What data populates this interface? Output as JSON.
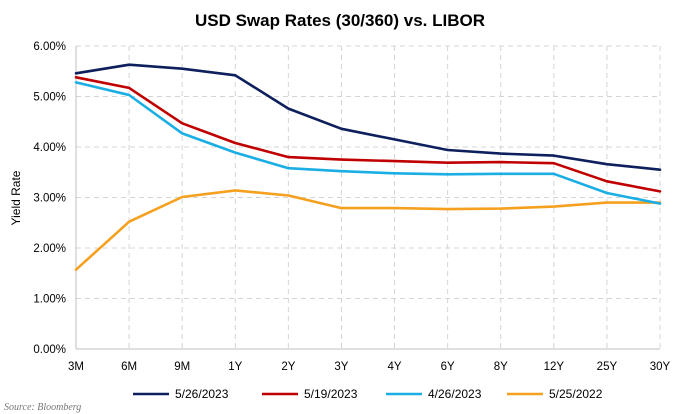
{
  "chart_data": {
    "type": "line",
    "title": "USD Swap Rates (30/360) vs. LIBOR",
    "xlabel": "",
    "ylabel": "Yield Rate",
    "categories": [
      "3M",
      "6M",
      "9M",
      "1Y",
      "2Y",
      "3Y",
      "4Y",
      "6Y",
      "8Y",
      "12Y",
      "25Y",
      "30Y"
    ],
    "ylim": [
      0,
      6
    ],
    "yticks": [
      "0.00%",
      "1.00%",
      "2.00%",
      "3.00%",
      "4.00%",
      "5.00%",
      "6.00%"
    ],
    "grid": true,
    "legend_position": "bottom",
    "series": [
      {
        "name": "5/26/2023",
        "color": "#0d1f5c",
        "values": [
          5.46,
          5.63,
          5.55,
          5.42,
          4.76,
          4.36,
          4.15,
          3.94,
          3.87,
          3.83,
          3.66,
          3.55
        ]
      },
      {
        "name": "5/19/2023",
        "color": "#c00000",
        "values": [
          5.38,
          5.17,
          4.47,
          4.08,
          3.8,
          3.75,
          3.72,
          3.69,
          3.7,
          3.68,
          3.32,
          3.12
        ]
      },
      {
        "name": "4/26/2023",
        "color": "#1aaee5",
        "values": [
          5.28,
          5.03,
          4.27,
          3.89,
          3.58,
          3.52,
          3.48,
          3.46,
          3.47,
          3.47,
          3.09,
          2.88
        ]
      },
      {
        "name": "5/25/2022",
        "color": "#f5a01f",
        "values": [
          1.57,
          2.52,
          3.01,
          3.14,
          3.04,
          2.79,
          2.79,
          2.77,
          2.78,
          2.82,
          2.9,
          2.9
        ]
      }
    ]
  },
  "source": "Source: Bloomberg"
}
